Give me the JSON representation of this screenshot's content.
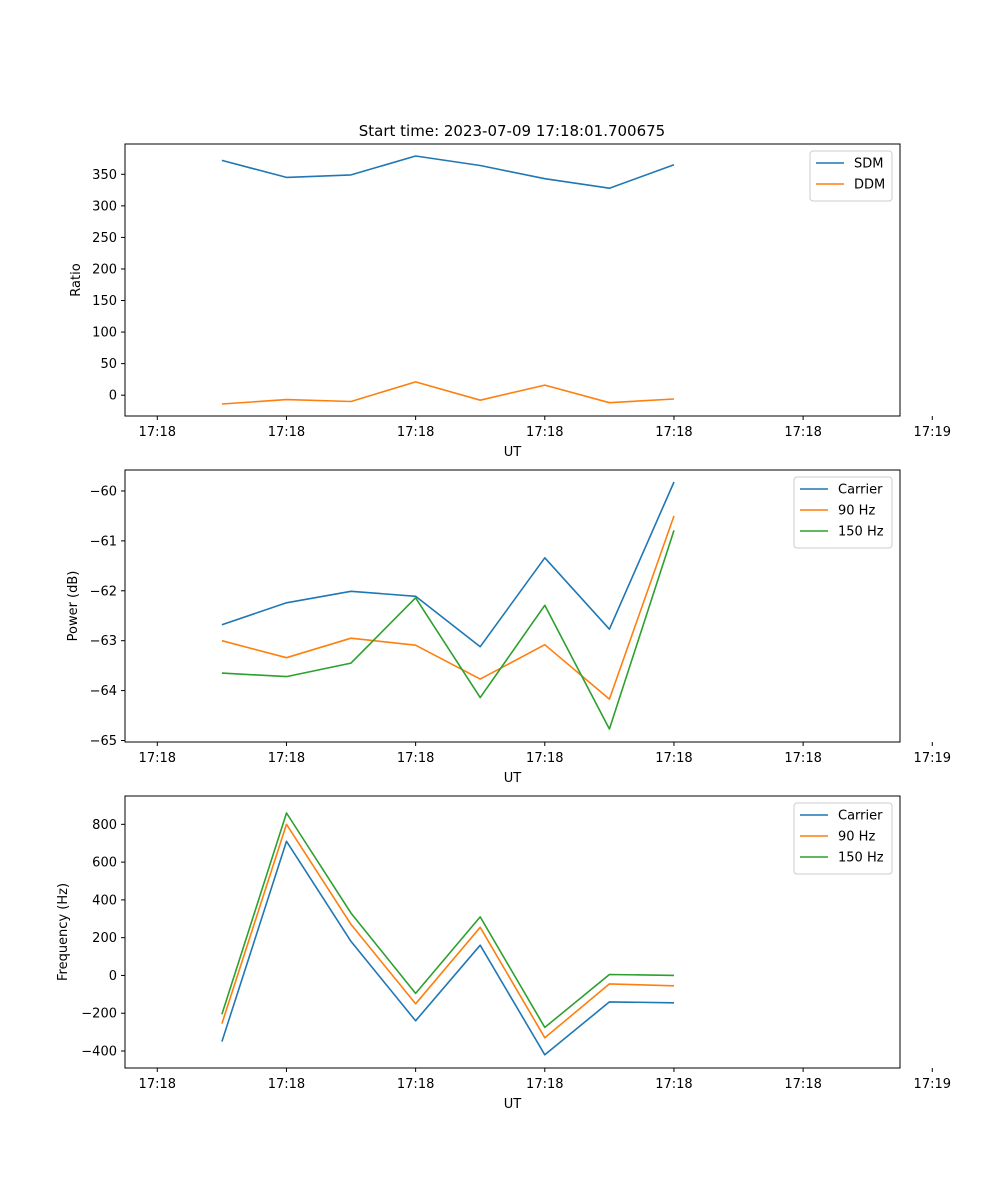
{
  "figure": {
    "title": "Start time: 2023-07-09 17:18:01.700675"
  },
  "chart_data": [
    {
      "type": "line",
      "xlabel": "UT",
      "ylabel": "Ratio",
      "x_tick_labels": [
        "17:18",
        "17:18",
        "17:18",
        "17:18",
        "17:18",
        "17:18",
        "17:19"
      ],
      "x": [
        1,
        2,
        3,
        4,
        5,
        6,
        7,
        8
      ],
      "xlim": [
        -0.5,
        11.5
      ],
      "x_tick_positions": [
        0,
        2,
        4,
        6,
        8,
        10,
        12
      ],
      "ylim": [
        -33,
        398
      ],
      "y_ticks": [
        0,
        50,
        100,
        150,
        200,
        250,
        300,
        350
      ],
      "legend": "top-right",
      "series": [
        {
          "name": "SDM",
          "color": "#1f77b4",
          "values": [
            372,
            345,
            349,
            379,
            364,
            343,
            328,
            365
          ]
        },
        {
          "name": "DDM",
          "color": "#ff7f0e",
          "values": [
            -14,
            -7,
            -10,
            21,
            -8,
            16,
            -12,
            -6
          ]
        }
      ]
    },
    {
      "type": "line",
      "xlabel": "UT",
      "ylabel": "Power (dB)",
      "x_tick_labels": [
        "17:18",
        "17:18",
        "17:18",
        "17:18",
        "17:18",
        "17:18",
        "17:19"
      ],
      "x": [
        1,
        2,
        3,
        4,
        5,
        6,
        7,
        8
      ],
      "xlim": [
        -0.5,
        11.5
      ],
      "x_tick_positions": [
        0,
        2,
        4,
        6,
        8,
        10,
        12
      ],
      "ylim": [
        -65.03,
        -59.58
      ],
      "y_ticks": [
        -65,
        -64,
        -63,
        -62,
        -61,
        -60
      ],
      "legend": "top-right",
      "series": [
        {
          "name": "Carrier",
          "color": "#1f77b4",
          "values": [
            -62.68,
            -62.24,
            -62.01,
            -62.11,
            -63.12,
            -61.34,
            -62.77,
            -59.82
          ]
        },
        {
          "name": "90 Hz",
          "color": "#ff7f0e",
          "values": [
            -63.0,
            -63.34,
            -62.95,
            -63.09,
            -63.77,
            -63.08,
            -64.17,
            -60.5
          ]
        },
        {
          "name": "150 Hz",
          "color": "#2ca02c",
          "values": [
            -63.65,
            -63.72,
            -63.45,
            -62.14,
            -64.14,
            -62.29,
            -64.77,
            -60.79
          ]
        }
      ]
    },
    {
      "type": "line",
      "xlabel": "UT",
      "ylabel": "Frequency (Hz)",
      "x_tick_labels": [
        "17:18",
        "17:18",
        "17:18",
        "17:18",
        "17:18",
        "17:18",
        "17:19"
      ],
      "x": [
        1,
        2,
        3,
        4,
        5,
        6,
        7,
        8
      ],
      "xlim": [
        -0.5,
        11.5
      ],
      "x_tick_positions": [
        0,
        2,
        4,
        6,
        8,
        10,
        12
      ],
      "ylim": [
        -490,
        950
      ],
      "y_ticks": [
        -400,
        -200,
        0,
        200,
        400,
        600,
        800
      ],
      "legend": "top-right",
      "series": [
        {
          "name": "Carrier",
          "color": "#1f77b4",
          "values": [
            -350,
            710,
            180,
            -240,
            160,
            -420,
            -140,
            -145
          ]
        },
        {
          "name": "90 Hz",
          "color": "#ff7f0e",
          "values": [
            -255,
            800,
            270,
            -150,
            255,
            -330,
            -45,
            -55
          ]
        },
        {
          "name": "150 Hz",
          "color": "#2ca02c",
          "values": [
            -205,
            860,
            330,
            -95,
            310,
            -275,
            5,
            0
          ]
        }
      ]
    }
  ]
}
